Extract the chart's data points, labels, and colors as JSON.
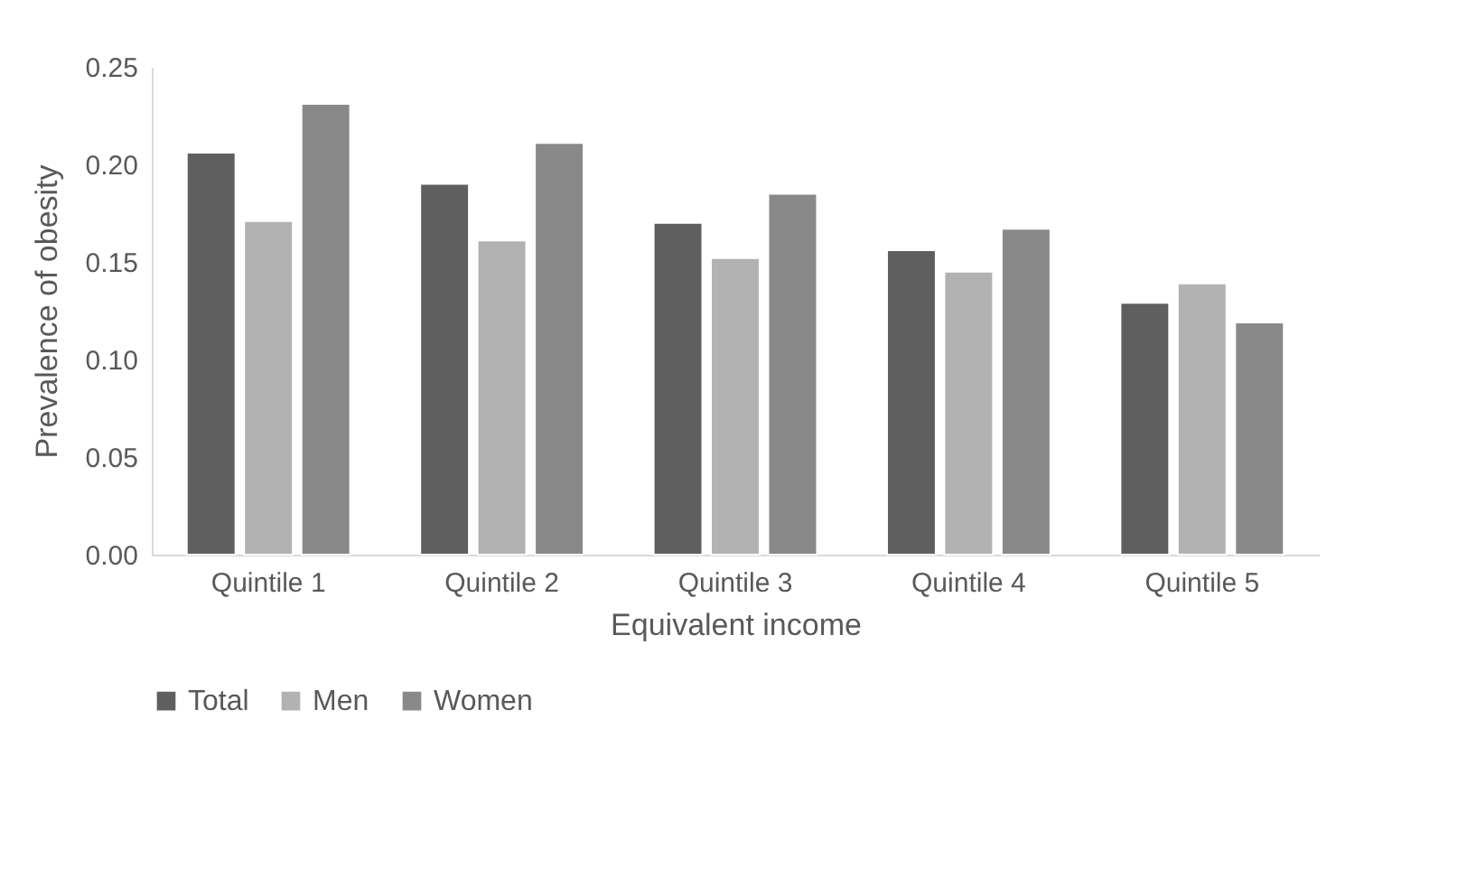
{
  "chart_data": {
    "type": "bar",
    "xlabel": "Equivalent income",
    "ylabel": "Prevalence of obesity",
    "categories": [
      "Quintile 1",
      "Quintile 2",
      "Quintile 3",
      "Quintile 4",
      "Quintile 5"
    ],
    "series": [
      {
        "name": "Total",
        "color": "#5f5f5f",
        "values": [
          0.206,
          0.19,
          0.17,
          0.156,
          0.129
        ]
      },
      {
        "name": "Men",
        "color": "#b2b2b2",
        "values": [
          0.171,
          0.161,
          0.152,
          0.145,
          0.139
        ]
      },
      {
        "name": "Women",
        "color": "#898989",
        "values": [
          0.231,
          0.211,
          0.185,
          0.167,
          0.119
        ]
      }
    ],
    "ylim": [
      0,
      0.25
    ],
    "yticks": [
      {
        "value": 0,
        "label": "0.00"
      },
      {
        "value": 0.05,
        "label": "0.05"
      },
      {
        "value": 0.1,
        "label": "0.10"
      },
      {
        "value": 0.15,
        "label": "0.15"
      },
      {
        "value": 0.2,
        "label": "0.20"
      },
      {
        "value": 0.25,
        "label": "0.25"
      }
    ],
    "grid": false,
    "legend": "bottom"
  }
}
